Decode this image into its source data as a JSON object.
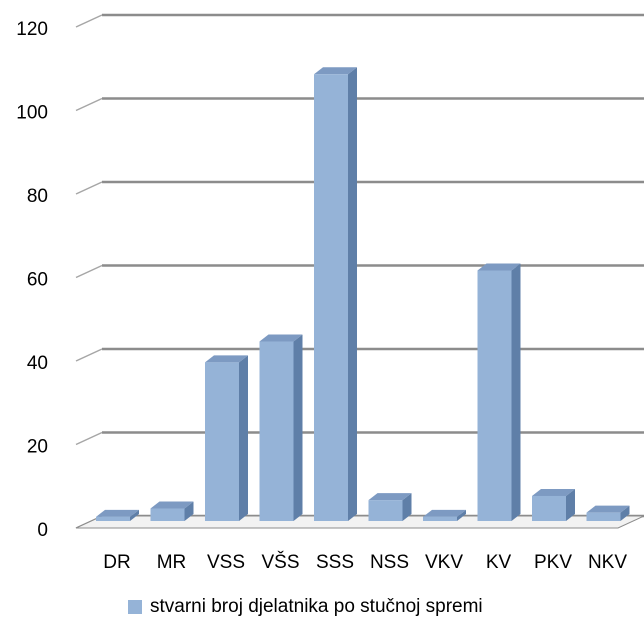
{
  "chart_data": {
    "type": "bar",
    "categories": [
      "DR",
      "MR",
      "VSS",
      "VŠS",
      "SSS",
      "NSS",
      "VKV",
      "KV",
      "PKV",
      "NKV"
    ],
    "series": [
      {
        "name": "stvarni broj djelatnika po stučnoj spremi",
        "values": [
          1,
          3,
          38,
          43,
          107,
          5,
          1,
          60,
          6,
          2
        ],
        "color": "#95b3d7"
      }
    ],
    "ylim": [
      0,
      120
    ],
    "yticks": [
      "0",
      "20",
      "40",
      "60",
      "80",
      "100",
      "120"
    ],
    "grid": true,
    "legend": "bottom",
    "style": "3d-column"
  }
}
